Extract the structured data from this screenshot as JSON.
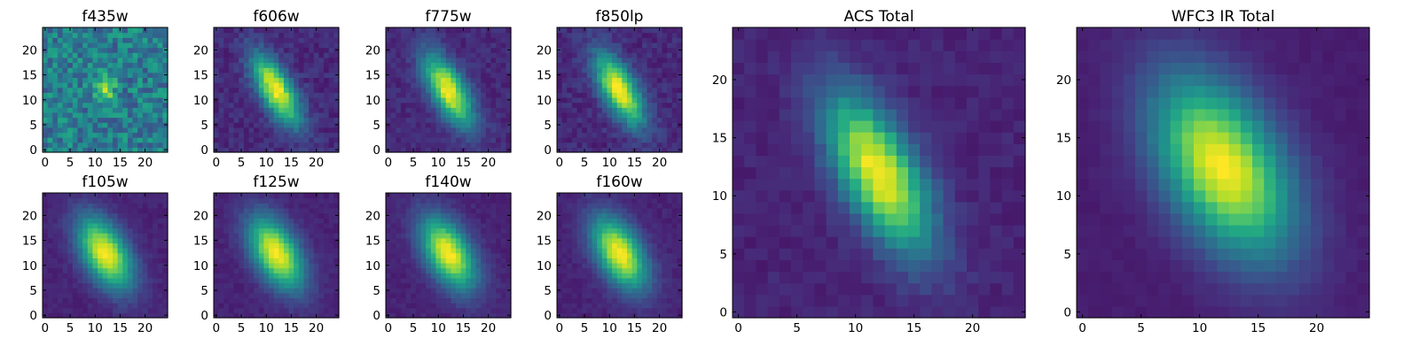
{
  "chart_data": [
    {
      "type": "heatmap",
      "title": "f435w",
      "colormap": "viridis",
      "grid_size": 25,
      "xlim": [
        -0.5,
        24.5
      ],
      "ylim": [
        -0.5,
        24.5
      ],
      "xticks": [
        0,
        5,
        10,
        15,
        20
      ],
      "yticks": [
        0,
        5,
        10,
        15,
        20
      ],
      "source": {
        "center": [
          12,
          12.5
        ],
        "sigma_major": 1.6,
        "sigma_minor": 1.2,
        "angle_deg": 90,
        "peak": 1.0,
        "background": 0.42,
        "noise": 0.35
      }
    },
    {
      "type": "heatmap",
      "title": "f606w",
      "colormap": "viridis",
      "grid_size": 25,
      "xlim": [
        -0.5,
        24.5
      ],
      "ylim": [
        -0.5,
        24.5
      ],
      "xticks": [
        0,
        5,
        10,
        15,
        20
      ],
      "yticks": [
        0,
        5,
        10,
        15,
        20
      ],
      "source": {
        "center": [
          12,
          12
        ],
        "sigma_major": 5.5,
        "sigma_minor": 2.2,
        "angle_deg": 120,
        "peak": 1.0,
        "background": 0.12,
        "noise": 0.12
      }
    },
    {
      "type": "heatmap",
      "title": "f775w",
      "colormap": "viridis",
      "grid_size": 25,
      "xlim": [
        -0.5,
        24.5
      ],
      "ylim": [
        -0.5,
        24.5
      ],
      "xticks": [
        0,
        5,
        10,
        15,
        20
      ],
      "yticks": [
        0,
        5,
        10,
        15,
        20
      ],
      "source": {
        "center": [
          12,
          12
        ],
        "sigma_major": 5.5,
        "sigma_minor": 2.3,
        "angle_deg": 120,
        "peak": 1.0,
        "background": 0.12,
        "noise": 0.1
      }
    },
    {
      "type": "heatmap",
      "title": "f850lp",
      "colormap": "viridis",
      "grid_size": 25,
      "xlim": [
        -0.5,
        24.5
      ],
      "ylim": [
        -0.5,
        24.5
      ],
      "xticks": [
        0,
        5,
        10,
        15,
        20
      ],
      "yticks": [
        0,
        5,
        10,
        15,
        20
      ],
      "source": {
        "center": [
          12,
          12
        ],
        "sigma_major": 5.5,
        "sigma_minor": 2.3,
        "angle_deg": 120,
        "peak": 1.0,
        "background": 0.12,
        "noise": 0.12
      }
    },
    {
      "type": "heatmap",
      "title": "f105w",
      "colormap": "viridis",
      "grid_size": 25,
      "xlim": [
        -0.5,
        24.5
      ],
      "ylim": [
        -0.5,
        24.5
      ],
      "xticks": [
        0,
        5,
        10,
        15,
        20
      ],
      "yticks": [
        0,
        5,
        10,
        15,
        20
      ],
      "source": {
        "center": [
          12,
          12.5
        ],
        "sigma_major": 5.5,
        "sigma_minor": 3.0,
        "angle_deg": 120,
        "peak": 1.0,
        "background": 0.1,
        "noise": 0.06
      }
    },
    {
      "type": "heatmap",
      "title": "f125w",
      "colormap": "viridis",
      "grid_size": 25,
      "xlim": [
        -0.5,
        24.5
      ],
      "ylim": [
        -0.5,
        24.5
      ],
      "xticks": [
        0,
        5,
        10,
        15,
        20
      ],
      "yticks": [
        0,
        5,
        10,
        15,
        20
      ],
      "source": {
        "center": [
          12,
          12.5
        ],
        "sigma_major": 5.5,
        "sigma_minor": 3.0,
        "angle_deg": 120,
        "peak": 1.0,
        "background": 0.1,
        "noise": 0.06
      }
    },
    {
      "type": "heatmap",
      "title": "f140w",
      "colormap": "viridis",
      "grid_size": 25,
      "xlim": [
        -0.5,
        24.5
      ],
      "ylim": [
        -0.5,
        24.5
      ],
      "xticks": [
        0,
        5,
        10,
        15,
        20
      ],
      "yticks": [
        0,
        5,
        10,
        15,
        20
      ],
      "source": {
        "center": [
          12,
          12.5
        ],
        "sigma_major": 5.5,
        "sigma_minor": 3.0,
        "angle_deg": 120,
        "peak": 1.0,
        "background": 0.1,
        "noise": 0.06
      }
    },
    {
      "type": "heatmap",
      "title": "f160w",
      "colormap": "viridis",
      "grid_size": 25,
      "xlim": [
        -0.5,
        24.5
      ],
      "ylim": [
        -0.5,
        24.5
      ],
      "xticks": [
        0,
        5,
        10,
        15,
        20
      ],
      "yticks": [
        0,
        5,
        10,
        15,
        20
      ],
      "source": {
        "center": [
          12,
          12.5
        ],
        "sigma_major": 5.5,
        "sigma_minor": 3.0,
        "angle_deg": 120,
        "peak": 1.0,
        "background": 0.1,
        "noise": 0.06
      }
    },
    {
      "type": "heatmap",
      "title": "ACS Total",
      "colormap": "viridis",
      "grid_size": 25,
      "xlim": [
        -0.5,
        24.5
      ],
      "ylim": [
        -0.5,
        24.5
      ],
      "xticks": [
        0,
        5,
        10,
        15,
        20
      ],
      "yticks": [
        0,
        5,
        10,
        15,
        20
      ],
      "source": {
        "center": [
          12,
          12
        ],
        "sigma_major": 5.2,
        "sigma_minor": 2.2,
        "angle_deg": 118,
        "peak": 1.0,
        "background": 0.1,
        "noise": 0.07
      }
    },
    {
      "type": "heatmap",
      "title": "WFC3 IR Total",
      "colormap": "viridis",
      "grid_size": 25,
      "xlim": [
        -0.5,
        24.5
      ],
      "ylim": [
        -0.5,
        24.5
      ],
      "xticks": [
        0,
        5,
        10,
        15,
        20
      ],
      "yticks": [
        0,
        5,
        10,
        15,
        20
      ],
      "source": {
        "center": [
          12,
          12.5
        ],
        "sigma_major": 5.8,
        "sigma_minor": 3.3,
        "angle_deg": 120,
        "peak": 1.0,
        "background": 0.08,
        "noise": 0.03
      }
    }
  ]
}
